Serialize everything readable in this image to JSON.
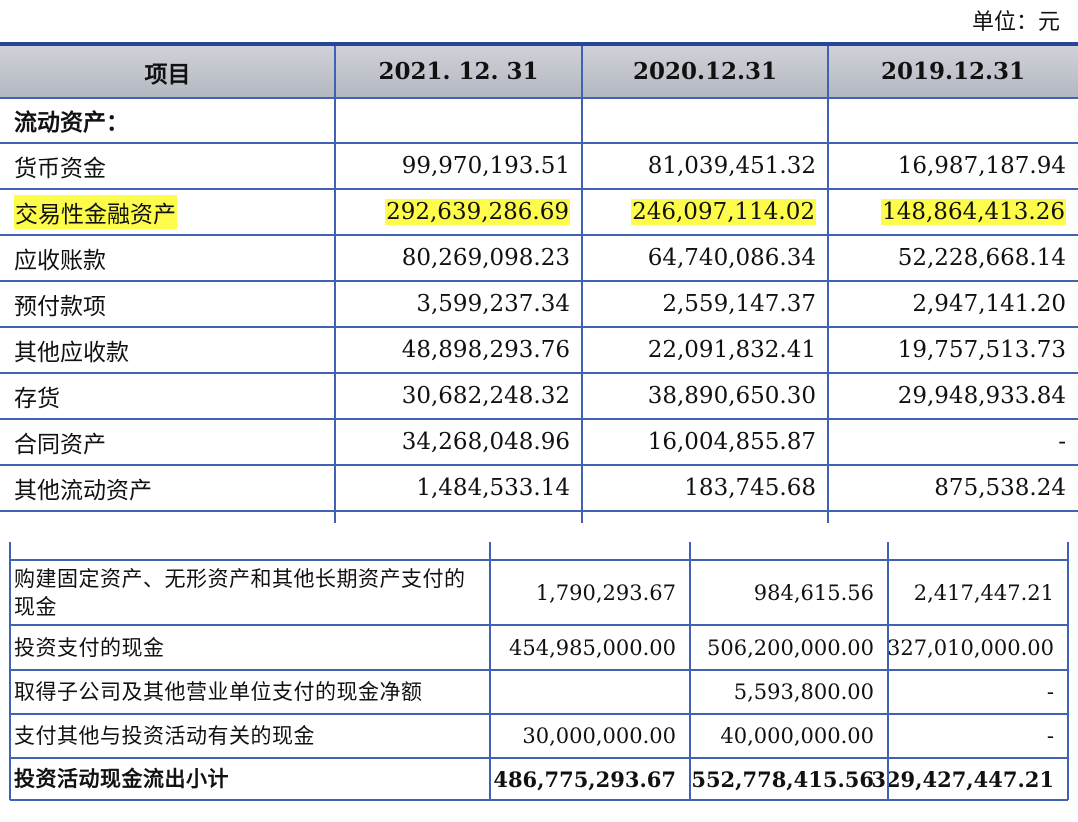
{
  "unit": "单位：元",
  "balance_table": {
    "header": [
      "项目",
      "2021. 12. 31",
      "2020.12.31",
      "2019.12.31"
    ],
    "rows": [
      {
        "label": "流动资产：",
        "bold": true
      },
      {
        "label": "货币资金",
        "values": [
          "99,970,193.51",
          "81,039,451.32",
          "16,987,187.94"
        ]
      },
      {
        "label": "交易性金融资产",
        "values": [
          "292,639,286.69",
          "246,097,114.02",
          "148,864,413.26"
        ],
        "highlighted": true
      },
      {
        "label": "应收账款",
        "values": [
          "80,269,098.23",
          "64,740,086.34",
          "52,228,668.14"
        ]
      },
      {
        "label": "预付款项",
        "values": [
          "3,599,237.34",
          "2,559,147.37",
          "2,947,141.20"
        ]
      },
      {
        "label": "其他应收款",
        "values": [
          "48,898,293.76",
          "22,091,832.41",
          "19,757,513.73"
        ]
      },
      {
        "label": "存货",
        "values": [
          "30,682,248.32",
          "38,890,650.30",
          "29,948,933.84"
        ]
      },
      {
        "label": "合同资产",
        "values": [
          "34,268,048.96",
          "16,004,855.87",
          "-"
        ]
      },
      {
        "label": "其他流动资产",
        "values": [
          "1,484,533.14",
          "183,745.68",
          "875,538.24"
        ]
      }
    ]
  },
  "cashflow_table": {
    "rows": [
      {
        "label": "购建固定资产、无形资产和其他长期资产支付的现金",
        "values": [
          "1,790,293.67",
          "984,615.56",
          "2,417,447.21"
        ]
      },
      {
        "label": "投资支付的现金",
        "values": [
          "454,985,000.00",
          "506,200,000.00",
          "327,010,000.00"
        ]
      },
      {
        "label": "取得子公司及其他营业单位支付的现金净额",
        "values": [
          null,
          "5,593,800.00",
          "-"
        ]
      },
      {
        "label": "支付其他与投资活动有关的现金",
        "values": [
          "30,000,000.00",
          "40,000,000.00",
          "-"
        ]
      },
      {
        "label": "投资活动现金流出小计",
        "values": [
          "486,775,293.67",
          "552,778,415.56",
          "329,427,447.21"
        ],
        "bold": true
      }
    ]
  }
}
